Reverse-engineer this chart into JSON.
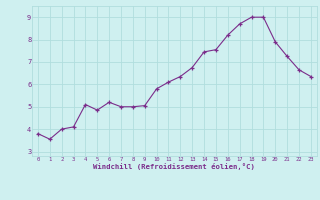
{
  "hours": [
    0,
    1,
    2,
    3,
    4,
    5,
    6,
    7,
    8,
    9,
    10,
    11,
    12,
    13,
    14,
    15,
    16,
    17,
    18,
    19,
    20,
    21,
    22,
    23
  ],
  "y_vals": [
    3.8,
    3.55,
    4.0,
    4.1,
    5.1,
    4.85,
    5.2,
    5.0,
    5.0,
    5.05,
    5.8,
    6.1,
    6.35,
    6.75,
    7.45,
    7.55,
    8.2,
    8.7,
    9.0,
    9.0,
    7.9,
    7.25,
    6.65,
    6.35
  ],
  "ylim": [
    2.8,
    9.5
  ],
  "yticks": [
    3,
    4,
    5,
    6,
    7,
    8,
    9
  ],
  "line_color": "#7b2d8b",
  "marker": "+",
  "bg_color": "#cff0f0",
  "grid_color": "#b0dede",
  "xlabel": "Windchill (Refroidissement éolien,°C)",
  "xlabel_color": "#7b2d8b",
  "tick_color": "#7b2d8b"
}
